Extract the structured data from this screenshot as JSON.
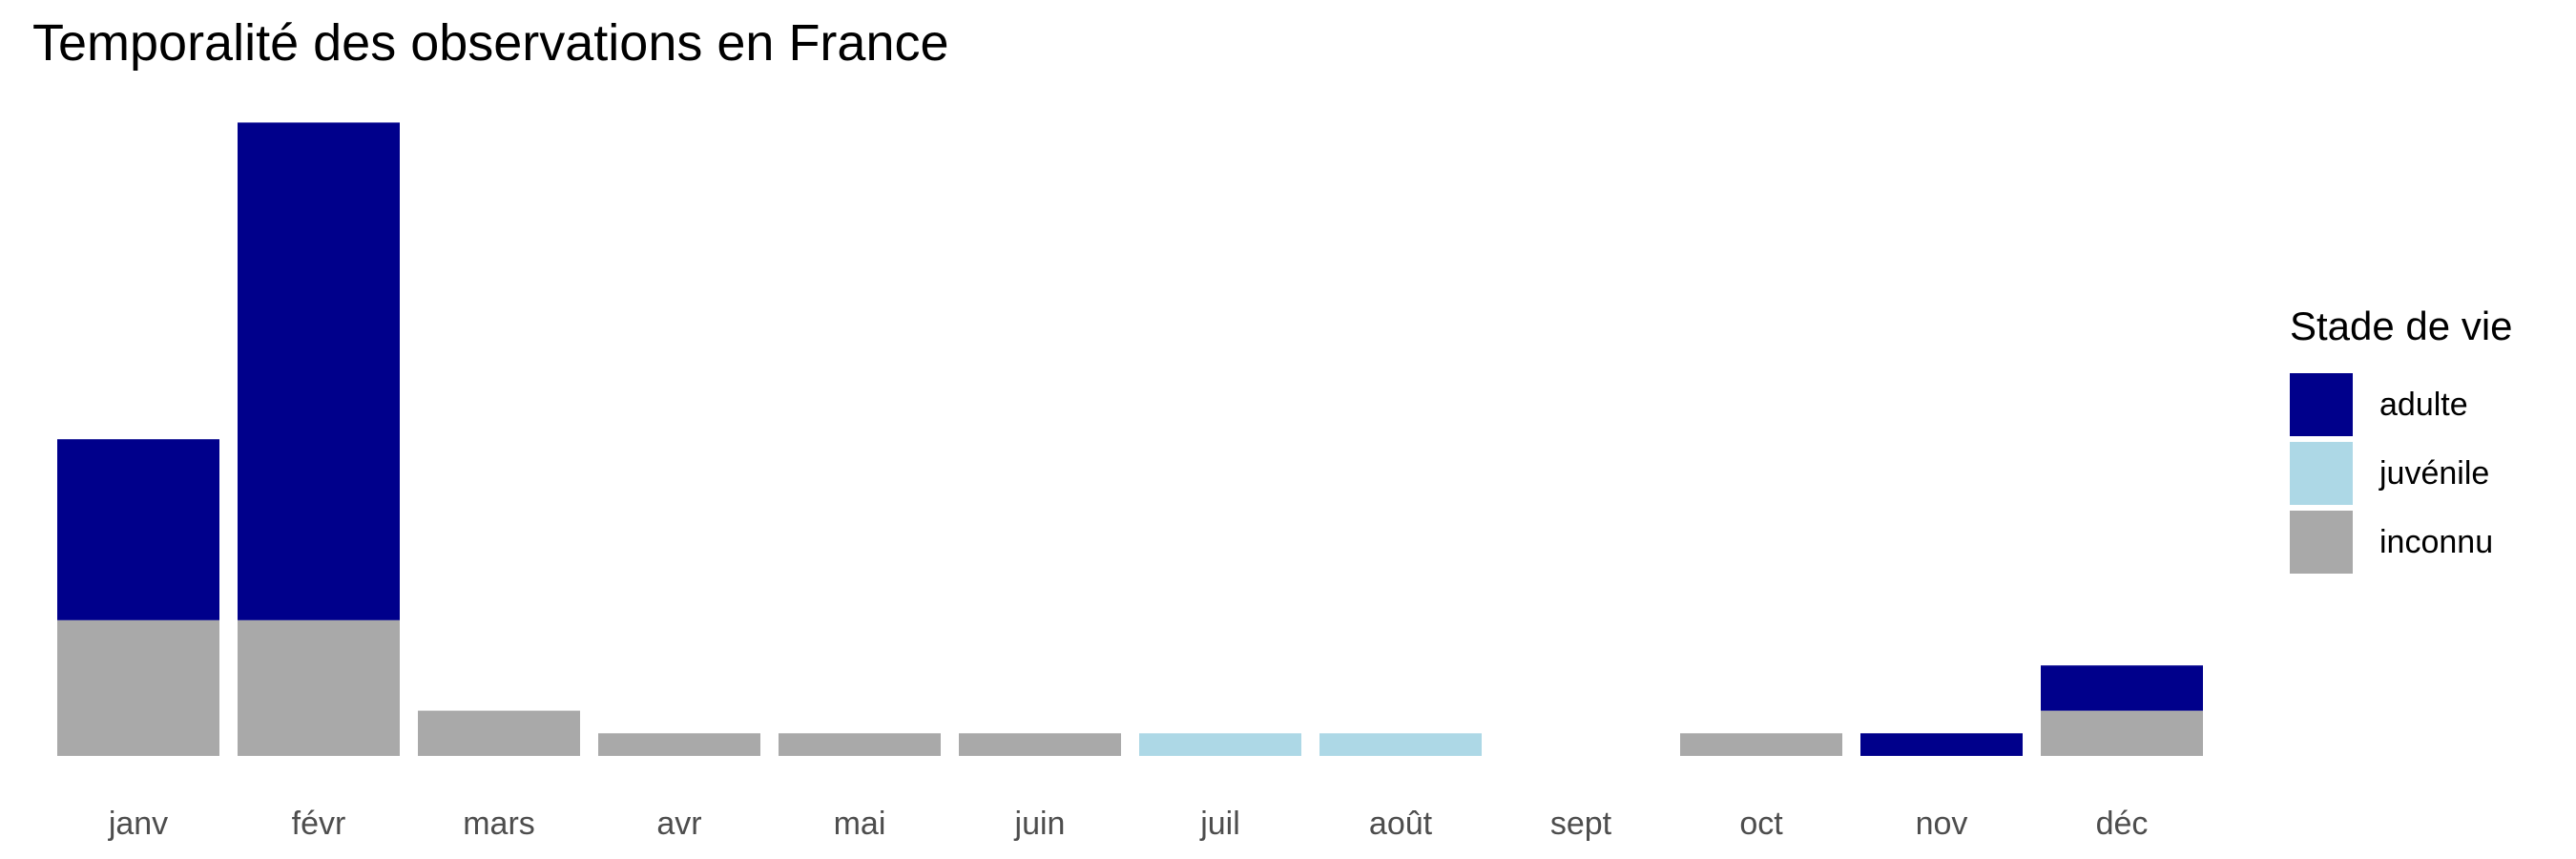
{
  "chart_data": {
    "type": "bar",
    "stacked": true,
    "title": "Temporalité des observations en France",
    "xlabel": "",
    "ylabel": "",
    "categories": [
      "janv",
      "févr",
      "mars",
      "avr",
      "mai",
      "juin",
      "juil",
      "août",
      "sept",
      "oct",
      "nov",
      "déc"
    ],
    "series": [
      {
        "name": "inconnu",
        "color": "#a9a9a9",
        "values": [
          6,
          6,
          2,
          1,
          1,
          1,
          0,
          0,
          0,
          1,
          0,
          2
        ]
      },
      {
        "name": "juvénile",
        "color": "#add8e6",
        "values": [
          0,
          0,
          0,
          0,
          0,
          0,
          1,
          1,
          0,
          0,
          0,
          0
        ]
      },
      {
        "name": "adulte",
        "color": "#00008b",
        "values": [
          8,
          22,
          0,
          0,
          0,
          0,
          0,
          0,
          0,
          0,
          1,
          2
        ]
      }
    ],
    "ylim": [
      0,
      28
    ],
    "grid": false,
    "y_axis_shown": false,
    "legend": {
      "title": "Stade de vie",
      "position": "right",
      "order": [
        "adulte",
        "juvénile",
        "inconnu"
      ]
    }
  }
}
